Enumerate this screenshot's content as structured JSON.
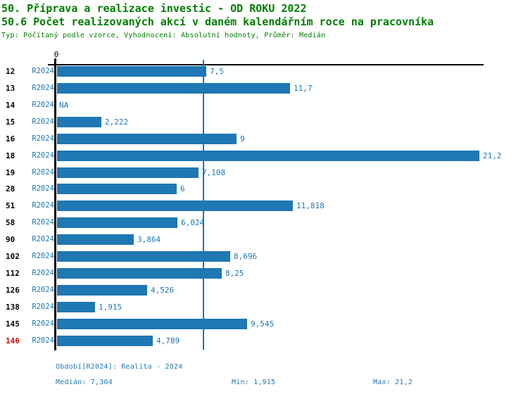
{
  "header": {
    "title_line1": "50. Příprava a realizace investic - OD ROKU 2022",
    "title_line2": "50.6 Počet realizovaných akcí v daném kalendářním roce na pracovníka",
    "subtitle": "Typ: Počítaný podle vzorce, Vyhodnocení: Absolutní hodnoty, Průměr: Medián"
  },
  "colors": {
    "title_green": "#007d00",
    "bar_blue": "#1f77b4",
    "highlight_red": "#dd0000",
    "axis_black": "#000000",
    "background": "#ffffff"
  },
  "chart_data": {
    "type": "bar",
    "orientation": "horizontal",
    "title": "50.6 Počet realizovaných akcí v daném kalendářním roce na pracovníka",
    "xlabel": "",
    "ylabel": "",
    "xlim": [
      0,
      21.4
    ],
    "grid": false,
    "legend_position": "none",
    "axis_zero_label": "0",
    "median_line": 7.304,
    "categories": [
      "12",
      "13",
      "14",
      "15",
      "16",
      "18",
      "19",
      "28",
      "51",
      "58",
      "90",
      "102",
      "112",
      "126",
      "138",
      "145",
      "146"
    ],
    "series": [
      {
        "name": "R2024",
        "values": [
          7.5,
          11.7,
          null,
          2.222,
          9,
          21.2,
          7.108,
          6,
          11.818,
          6.024,
          3.864,
          8.696,
          8.25,
          4.526,
          1.915,
          9.545,
          4.789
        ]
      }
    ],
    "value_labels": [
      "7,5",
      "11,7",
      "NA",
      "2,222",
      "9",
      "21,2",
      "7,108",
      "6",
      "11,818",
      "6,024",
      "3,864",
      "8,696",
      "8,25",
      "4,526",
      "1,915",
      "9,545",
      "4,789"
    ],
    "highlighted_categories": [
      "146"
    ]
  },
  "footer": {
    "period_line": "Období[R2024]: Realita - 2024",
    "median": "Medián: 7,304",
    "min": "Min: 1,915",
    "max": "Max: 21,2"
  }
}
